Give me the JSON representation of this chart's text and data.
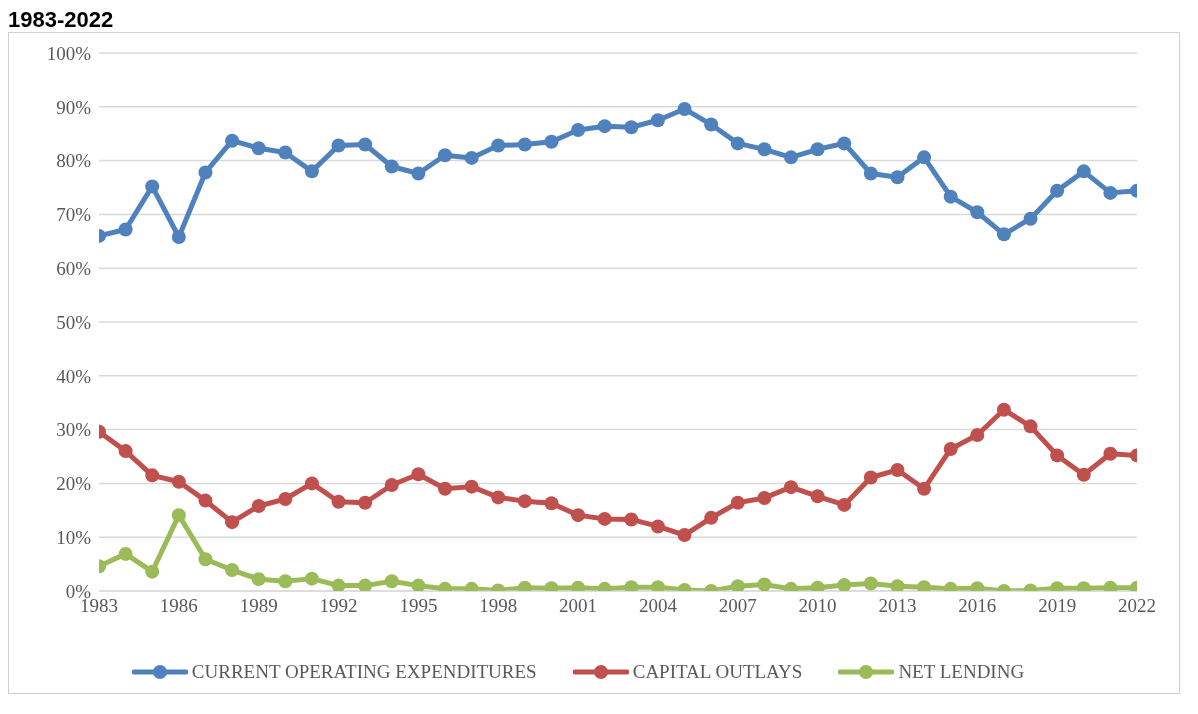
{
  "chart_data": {
    "type": "line",
    "title": "1983-2022",
    "x": [
      1983,
      1984,
      1985,
      1986,
      1987,
      1988,
      1989,
      1990,
      1991,
      1992,
      1993,
      1994,
      1995,
      1996,
      1997,
      1998,
      1999,
      2000,
      2001,
      2002,
      2003,
      2004,
      2005,
      2006,
      2007,
      2008,
      2009,
      2010,
      2011,
      2012,
      2013,
      2014,
      2015,
      2016,
      2017,
      2018,
      2019,
      2020,
      2021,
      2022
    ],
    "series": [
      {
        "name": "CURRENT OPERATING EXPENDITURES",
        "color": "#4f81bd",
        "values": [
          66,
          67.2,
          75.2,
          65.8,
          77.8,
          83.7,
          82.3,
          81.5,
          78,
          82.8,
          83,
          78.9,
          77.6,
          81,
          80.5,
          82.8,
          83,
          83.5,
          85.7,
          86.4,
          86.2,
          87.5,
          89.6,
          86.7,
          83.2,
          82.1,
          80.6,
          82.1,
          83.2,
          77.6,
          76.9,
          80.6,
          73.3,
          70.4,
          66.3,
          69.2,
          74.4,
          78,
          74,
          74.4
        ]
      },
      {
        "name": "CAPITAL OUTLAYS",
        "color": "#c0504d",
        "values": [
          29.6,
          26,
          21.5,
          20.3,
          16.8,
          12.8,
          15.8,
          17.1,
          20,
          16.6,
          16.4,
          19.7,
          21.7,
          19,
          19.4,
          17.4,
          16.7,
          16.3,
          14.1,
          13.4,
          13.3,
          12,
          10.4,
          13.6,
          16.4,
          17.3,
          19.3,
          17.6,
          16,
          21.1,
          22.5,
          19,
          26.4,
          29,
          33.7,
          30.6,
          25.2,
          21.6,
          25.5,
          25.2
        ]
      },
      {
        "name": "NET LENDING",
        "color": "#9bbb59",
        "values": [
          4.6,
          6.9,
          3.6,
          14.1,
          5.9,
          3.9,
          2.2,
          1.8,
          2.3,
          1,
          1,
          1.8,
          1,
          0.4,
          0.4,
          0.1,
          0.6,
          0.5,
          0.6,
          0.4,
          0.7,
          0.7,
          0.2,
          0,
          0.9,
          1.2,
          0.4,
          0.6,
          1.1,
          1.4,
          0.9,
          0.7,
          0.4,
          0.5,
          0,
          0.1,
          0.5,
          0.5,
          0.6,
          0.6
        ]
      }
    ],
    "xlim": [
      1983,
      2022
    ],
    "xticks": [
      1983,
      1986,
      1989,
      1992,
      1995,
      1998,
      2001,
      2004,
      2007,
      2010,
      2013,
      2016,
      2019,
      2022
    ],
    "ylim": [
      0,
      100
    ],
    "yticks": [
      {
        "value": 0,
        "label": "0%"
      },
      {
        "value": 10,
        "label": "10%"
      },
      {
        "value": 20,
        "label": "20%"
      },
      {
        "value": 30,
        "label": "30%"
      },
      {
        "value": 40,
        "label": "40%"
      },
      {
        "value": 50,
        "label": "50%"
      },
      {
        "value": 60,
        "label": "60%"
      },
      {
        "value": 70,
        "label": "70%"
      },
      {
        "value": 80,
        "label": "80%"
      },
      {
        "value": 90,
        "label": "90%"
      },
      {
        "value": 100,
        "label": "100%"
      }
    ],
    "grid": "y",
    "legend": "bottom",
    "marker": "circle",
    "line_style": "solid"
  }
}
